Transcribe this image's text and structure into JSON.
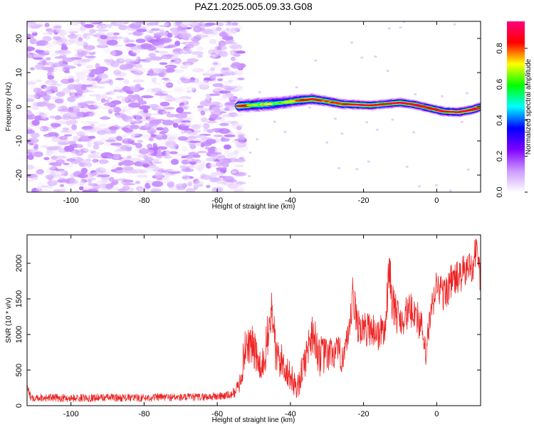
{
  "title": "PAZ1.2025.005.09.33.G08",
  "chart_data": [
    {
      "type": "heatmap",
      "xlabel": "Height of straight line (km)",
      "ylabel": "Frequency (Hz)",
      "xlim": [
        -112,
        12
      ],
      "ylim": [
        -25,
        25
      ],
      "xticks": [
        -100,
        -80,
        -60,
        -40,
        -20,
        0
      ],
      "yticks": [
        -20,
        -10,
        0,
        10,
        20
      ],
      "colorbar": {
        "label": "Normalized spectral amplitude",
        "range": [
          0.0,
          0.95
        ],
        "ticks": [
          0.0,
          0.2,
          0.4,
          0.6,
          0.8
        ],
        "colors": [
          "#ffffff",
          "#cc99ff",
          "#7f00ff",
          "#0000ff",
          "#00ffff",
          "#00ff00",
          "#ffff00",
          "#ff0000",
          "#ff0080"
        ]
      },
      "noise_region": {
        "x": [
          -112,
          -53
        ],
        "frequency": [
          -25,
          25
        ],
        "amplitude_max": 0.15
      },
      "signal_ridge": {
        "x": [
          -54,
          -50,
          -46,
          -42,
          -38,
          -34,
          -30,
          -26,
          -22,
          -18,
          -14,
          -10,
          -6,
          -2,
          2,
          6,
          10,
          12
        ],
        "frequency": [
          0.2,
          0.5,
          0.8,
          1.2,
          1.8,
          2.2,
          1.6,
          0.8,
          0.6,
          0.4,
          0.8,
          1.2,
          0.6,
          -0.4,
          -1.4,
          -1.6,
          -0.8,
          0.0
        ],
        "amplitude": [
          0.95,
          0.7,
          0.75,
          0.65,
          0.8,
          0.9,
          0.8,
          0.85,
          0.9,
          0.9,
          0.85,
          0.9,
          0.9,
          0.85,
          0.9,
          0.95,
          0.9,
          0.8
        ],
        "width": [
          1.4,
          1.6,
          1.6,
          1.5,
          1.4,
          1.3,
          1.2,
          1.2,
          1.1,
          1.1,
          1.1,
          1.1,
          1.1,
          1.1,
          1.1,
          1.1,
          1.1,
          1.1
        ]
      }
    },
    {
      "type": "line",
      "xlabel": "Height of straight line (km)",
      "ylabel": "SNR (10 * v/v)",
      "xlim": [
        -112,
        12
      ],
      "ylim": [
        0,
        2400
      ],
      "xticks": [
        -100,
        -80,
        -60,
        -40,
        -20,
        0
      ],
      "yticks": [
        0,
        500,
        1000,
        1500,
        2000
      ],
      "color": "#ee2222",
      "series": [
        {
          "x": [
            -112,
            -111,
            -105,
            -100,
            -95,
            -90,
            -85,
            -80,
            -75,
            -70,
            -65,
            -60,
            -56,
            -54,
            -53,
            -52,
            -50,
            -48,
            -46,
            -45,
            -44,
            -42,
            -40,
            -38,
            -36,
            -34,
            -32,
            -30,
            -28,
            -26,
            -24,
            -23,
            -22,
            -20,
            -18,
            -16,
            -14,
            -13,
            -12,
            -10,
            -8,
            -6,
            -4,
            -3,
            -2,
            0,
            2,
            4,
            6,
            8,
            10,
            11,
            12
          ],
          "y": [
            260,
            120,
            110,
            105,
            110,
            115,
            110,
            110,
            120,
            115,
            120,
            130,
            150,
            280,
            600,
            900,
            800,
            450,
            1000,
            1400,
            700,
            600,
            400,
            250,
            650,
            1050,
            700,
            700,
            750,
            700,
            900,
            1550,
            1200,
            1050,
            1100,
            1000,
            1100,
            2000,
            1400,
            1200,
            1300,
            1350,
            1050,
            700,
            1150,
            1700,
            1550,
            1750,
            1800,
            1900,
            2000,
            2250,
            1750
          ],
          "noise_amplitude": [
            60,
            60,
            55,
            55,
            55,
            55,
            55,
            55,
            55,
            55,
            55,
            60,
            60,
            120,
            250,
            300,
            300,
            250,
            350,
            350,
            300,
            250,
            200,
            180,
            250,
            300,
            300,
            250,
            250,
            250,
            250,
            300,
            300,
            250,
            250,
            250,
            250,
            300,
            300,
            250,
            250,
            250,
            250,
            200,
            250,
            250,
            250,
            250,
            250,
            250,
            250,
            250,
            250
          ]
        }
      ]
    }
  ]
}
